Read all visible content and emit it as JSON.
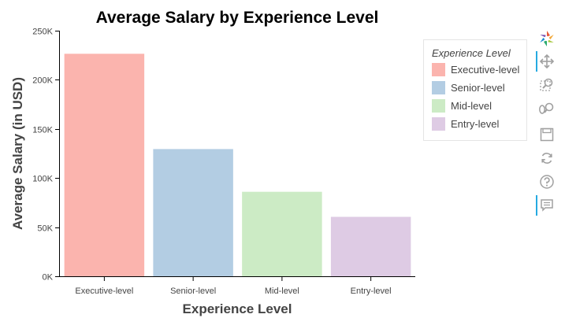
{
  "chart_data": {
    "type": "bar",
    "title": "Average Salary by Experience Level",
    "xlabel": "Experience Level",
    "ylabel": "Average Salary (in USD)",
    "categories": [
      "Executive-level",
      "Senior-level",
      "Mid-level",
      "Entry-level"
    ],
    "values": [
      226500,
      129500,
      86000,
      60500
    ],
    "colors": [
      "#fbb4ae",
      "#b3cde3",
      "#ccebc5",
      "#decbe4"
    ],
    "ylim": [
      0,
      250000
    ],
    "yticks": [
      0,
      50000,
      100000,
      150000,
      200000,
      250000
    ],
    "ytick_labels": [
      "0K",
      "50K",
      "100K",
      "150K",
      "200K",
      "250K"
    ],
    "grid": false,
    "legend": {
      "title": "Experience Level",
      "placement": "right",
      "entries": [
        "Executive-level",
        "Senior-level",
        "Mid-level",
        "Entry-level"
      ]
    }
  },
  "toolbar": {
    "tools": [
      "bokeh-logo-icon",
      "pan-icon",
      "box-zoom-icon",
      "wheel-zoom-icon",
      "save-icon",
      "reset-icon",
      "help-icon",
      "hover-icon"
    ],
    "active_color": "#26aae1"
  }
}
